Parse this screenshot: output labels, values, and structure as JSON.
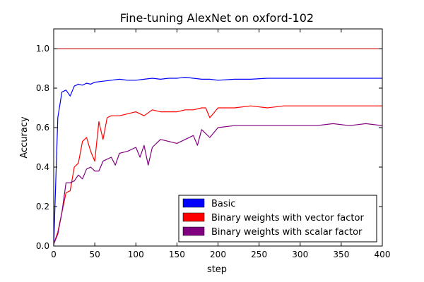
{
  "chart_data": {
    "type": "line",
    "title": "Fine-tuning AlexNet on oxford-102",
    "xlabel": "step",
    "ylabel": "Accuracy",
    "xlim": [
      0,
      400
    ],
    "ylim": [
      0,
      1.1
    ],
    "xticks": [
      "0",
      "50",
      "100",
      "150",
      "200",
      "250",
      "300",
      "350",
      "400"
    ],
    "yticks": [
      "0.0",
      "0.2",
      "0.4",
      "0.6",
      "0.8",
      "1.0"
    ],
    "grid": false,
    "legend_position": "lower-right",
    "reference_line": {
      "y": 1.0,
      "color": "#cc0000"
    },
    "series": [
      {
        "name": "Basic",
        "color": "#0000ff",
        "x": [
          0,
          5,
          10,
          15,
          20,
          25,
          30,
          35,
          40,
          45,
          50,
          60,
          70,
          80,
          90,
          100,
          110,
          120,
          130,
          140,
          150,
          160,
          170,
          180,
          190,
          200,
          220,
          240,
          260,
          280,
          300,
          320,
          340,
          360,
          380,
          400
        ],
        "y": [
          0.0,
          0.65,
          0.78,
          0.79,
          0.76,
          0.81,
          0.82,
          0.815,
          0.825,
          0.82,
          0.83,
          0.835,
          0.84,
          0.845,
          0.84,
          0.84,
          0.845,
          0.85,
          0.845,
          0.85,
          0.85,
          0.855,
          0.85,
          0.845,
          0.845,
          0.84,
          0.845,
          0.845,
          0.85,
          0.85,
          0.85,
          0.85,
          0.85,
          0.85,
          0.85,
          0.85
        ]
      },
      {
        "name": "Binary weights with vector factor",
        "color": "#ff0000",
        "x": [
          0,
          5,
          10,
          15,
          20,
          25,
          30,
          35,
          40,
          45,
          50,
          55,
          60,
          65,
          70,
          80,
          90,
          100,
          110,
          120,
          130,
          140,
          150,
          160,
          170,
          180,
          185,
          190,
          200,
          220,
          240,
          260,
          280,
          300,
          320,
          340,
          360,
          380,
          400
        ],
        "y": [
          0.01,
          0.07,
          0.17,
          0.27,
          0.28,
          0.4,
          0.42,
          0.53,
          0.55,
          0.48,
          0.43,
          0.63,
          0.54,
          0.65,
          0.66,
          0.66,
          0.67,
          0.68,
          0.66,
          0.69,
          0.68,
          0.68,
          0.68,
          0.69,
          0.69,
          0.7,
          0.7,
          0.65,
          0.7,
          0.7,
          0.71,
          0.7,
          0.71,
          0.71,
          0.71,
          0.71,
          0.71,
          0.71,
          0.71
        ]
      },
      {
        "name": "Binary weights with scalar factor",
        "color": "#800080",
        "x": [
          0,
          5,
          10,
          15,
          20,
          25,
          30,
          35,
          40,
          45,
          50,
          55,
          60,
          65,
          70,
          75,
          80,
          90,
          100,
          105,
          110,
          115,
          120,
          130,
          140,
          150,
          160,
          170,
          175,
          180,
          190,
          200,
          220,
          240,
          260,
          280,
          300,
          320,
          340,
          360,
          380,
          400
        ],
        "y": [
          0.01,
          0.06,
          0.17,
          0.32,
          0.32,
          0.33,
          0.36,
          0.34,
          0.39,
          0.4,
          0.38,
          0.38,
          0.43,
          0.44,
          0.45,
          0.41,
          0.47,
          0.48,
          0.5,
          0.45,
          0.51,
          0.41,
          0.5,
          0.54,
          0.53,
          0.52,
          0.54,
          0.56,
          0.51,
          0.59,
          0.55,
          0.6,
          0.61,
          0.61,
          0.61,
          0.61,
          0.61,
          0.61,
          0.62,
          0.61,
          0.62,
          0.61
        ]
      }
    ]
  }
}
